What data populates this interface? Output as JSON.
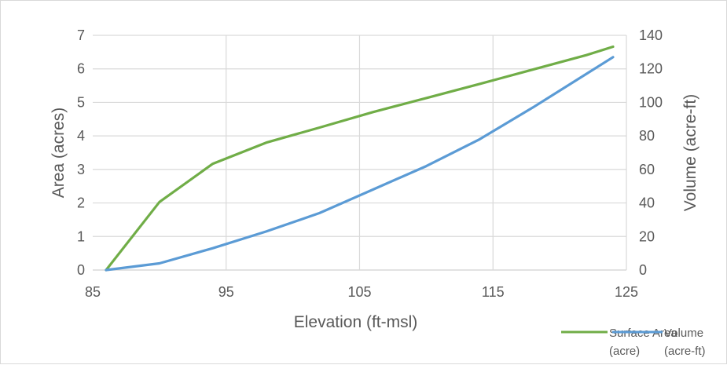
{
  "chart_data": {
    "type": "line",
    "xlabel": "Elevation (ft-msl)",
    "ylabel_left": "Area (acres)",
    "ylabel_right": "Volume (acre-ft)",
    "xlim": [
      85,
      125
    ],
    "ylim_left": [
      0,
      7
    ],
    "ylim_right": [
      0,
      140
    ],
    "x_ticks": [
      "85",
      "95",
      "105",
      "115",
      "125"
    ],
    "y_left_ticks": [
      "0",
      "1",
      "2",
      "3",
      "4",
      "5",
      "6",
      "7"
    ],
    "y_right_ticks": [
      "0",
      "20",
      "40",
      "60",
      "80",
      "100",
      "120",
      "140"
    ],
    "grid": true,
    "legend_position": "bottom-right",
    "series": [
      {
        "name": "Surface Area (acre)",
        "legend_lines": [
          "Surface Area",
          "(acre)"
        ],
        "axis": "left",
        "color": "#70ad47",
        "x": [
          86,
          90,
          94,
          98,
          102,
          106,
          110,
          114,
          118,
          122,
          124
        ],
        "values": [
          0,
          2.03,
          3.17,
          3.8,
          4.25,
          4.71,
          5.13,
          5.55,
          5.98,
          6.41,
          6.66
        ]
      },
      {
        "name": "Volume (acre-ft)",
        "legend_lines": [
          "Volume",
          "(acre-ft)"
        ],
        "axis": "right",
        "color": "#5b9bd5",
        "x": [
          86,
          90,
          94,
          98,
          102,
          106,
          110,
          114,
          118,
          122,
          124
        ],
        "values": [
          0,
          4,
          13,
          23,
          34,
          48,
          62,
          78,
          97,
          117,
          127
        ]
      }
    ]
  }
}
